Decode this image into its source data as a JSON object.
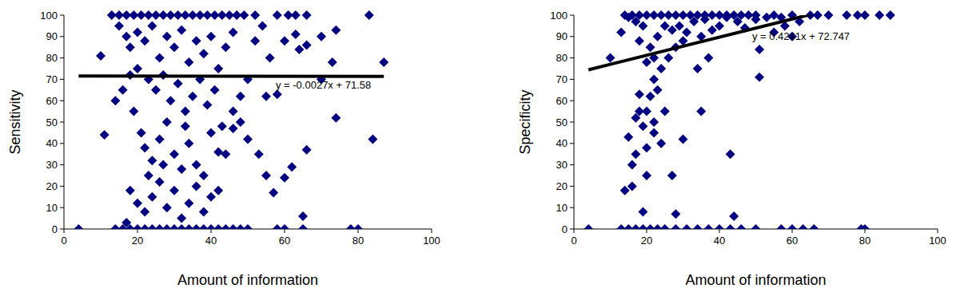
{
  "chart_data": [
    {
      "type": "scatter",
      "x_label": "Amount of information",
      "y_label": "Sensitivity",
      "color": "#000080",
      "marker": "diamond",
      "xlim": [
        0,
        100
      ],
      "ylim": [
        0,
        100
      ],
      "xticks": [
        0,
        20,
        40,
        60,
        80,
        100
      ],
      "yticks": [
        0,
        10,
        20,
        30,
        40,
        50,
        60,
        70,
        80,
        90,
        100
      ],
      "trendline": {
        "slope": -0.0027,
        "intercept": 71.58,
        "label": "y = -0.0027x + 71.58"
      },
      "x": [
        13,
        15,
        17,
        19,
        21,
        23,
        25,
        27,
        29,
        31,
        33,
        35,
        37,
        39,
        41,
        43,
        45,
        47,
        49,
        52,
        58,
        61,
        63,
        66,
        83,
        15,
        17,
        18,
        20,
        22,
        24,
        26,
        28,
        30,
        32,
        34,
        36,
        38,
        40,
        42,
        44,
        46,
        20,
        23,
        25,
        27,
        29,
        31,
        33,
        35,
        37,
        39,
        41,
        43,
        19,
        21,
        22,
        24,
        26,
        28,
        30,
        32,
        34,
        36,
        38,
        40,
        42,
        18,
        20,
        22,
        24,
        26,
        28,
        30,
        32,
        34,
        36,
        38,
        40,
        42,
        44,
        46,
        48,
        17,
        23,
        27,
        33,
        16,
        18,
        14,
        4,
        14,
        16,
        18,
        20,
        22,
        24,
        26,
        28,
        30,
        32,
        34,
        36,
        38,
        40,
        42,
        44,
        46,
        48,
        50,
        58,
        60,
        65,
        78,
        80,
        10,
        11,
        84,
        87,
        74,
        73,
        74,
        70,
        66,
        65,
        62,
        60,
        58,
        57,
        55,
        53,
        50,
        52,
        55,
        64,
        63,
        66,
        70,
        54,
        56,
        60,
        48,
        46,
        50
      ],
      "values": [
        100,
        100,
        100,
        100,
        100,
        100,
        100,
        100,
        100,
        100,
        100,
        100,
        100,
        100,
        100,
        100,
        100,
        100,
        100,
        100,
        100,
        100,
        100,
        100,
        100,
        95,
        90,
        85,
        92,
        88,
        95,
        80,
        90,
        85,
        93,
        78,
        88,
        82,
        90,
        75,
        85,
        92,
        75,
        70,
        65,
        72,
        60,
        68,
        55,
        62,
        70,
        58,
        65,
        48,
        55,
        45,
        38,
        32,
        42,
        50,
        35,
        28,
        40,
        30,
        25,
        45,
        36,
        18,
        12,
        8,
        15,
        22,
        10,
        18,
        5,
        12,
        20,
        8,
        15,
        18,
        35,
        47,
        50,
        3,
        25,
        30,
        48,
        65,
        72,
        60,
        0,
        0,
        0,
        0,
        0,
        0,
        0,
        0,
        0,
        0,
        0,
        0,
        0,
        0,
        0,
        0,
        0,
        0,
        0,
        0,
        0,
        0,
        0,
        0,
        0,
        81,
        44,
        42,
        78,
        52,
        78,
        93,
        70,
        37,
        6,
        29,
        24,
        63,
        17,
        25,
        35,
        70,
        88,
        62,
        84,
        91,
        86,
        90,
        95,
        80,
        88,
        62,
        55,
        42
      ]
    },
    {
      "type": "scatter",
      "x_label": "Amount of information",
      "y_label": "Specificity",
      "color": "#000080",
      "marker": "diamond",
      "xlim": [
        0,
        100
      ],
      "ylim": [
        0,
        100
      ],
      "xticks": [
        0,
        20,
        40,
        60,
        80,
        100
      ],
      "yticks": [
        0,
        10,
        20,
        30,
        40,
        50,
        60,
        70,
        80,
        90,
        100
      ],
      "trendline": {
        "slope": 0.4241,
        "intercept": 72.747,
        "label": "y = 0.4241x + 72.747"
      },
      "x": [
        14,
        16,
        18,
        20,
        22,
        24,
        26,
        28,
        30,
        32,
        34,
        36,
        38,
        40,
        42,
        44,
        46,
        48,
        50,
        55,
        60,
        65,
        67,
        70,
        75,
        78,
        80,
        84,
        87,
        4,
        13,
        15,
        17,
        19,
        21,
        23,
        25,
        28,
        31,
        34,
        37,
        40,
        43,
        46,
        50,
        57,
        60,
        63,
        66,
        79,
        80,
        13,
        10,
        15,
        14,
        16,
        17,
        18,
        19,
        20,
        22,
        25,
        27,
        28,
        30,
        34,
        35,
        37,
        43,
        44,
        51,
        51,
        55,
        58,
        60,
        50,
        45,
        40,
        35,
        30,
        28,
        26,
        24,
        22,
        21,
        20,
        19,
        23,
        24,
        22,
        20,
        18,
        17,
        16,
        21,
        23,
        25,
        27,
        19,
        17,
        15,
        20,
        22,
        18,
        29,
        31,
        33,
        36,
        38,
        42,
        47,
        53,
        62,
        57
      ],
      "values": [
        100,
        100,
        100,
        100,
        100,
        100,
        100,
        100,
        100,
        100,
        100,
        100,
        100,
        100,
        100,
        100,
        100,
        100,
        100,
        100,
        100,
        100,
        100,
        100,
        100,
        100,
        100,
        100,
        100,
        0,
        0,
        0,
        0,
        0,
        0,
        0,
        0,
        0,
        0,
        0,
        0,
        0,
        0,
        0,
        0,
        0,
        0,
        0,
        0,
        0,
        0,
        92,
        80,
        43,
        18,
        20,
        35,
        55,
        8,
        25,
        45,
        55,
        25,
        7,
        42,
        75,
        55,
        80,
        35,
        6,
        71,
        84,
        92,
        95,
        90,
        98,
        97,
        95,
        90,
        88,
        85,
        80,
        75,
        70,
        62,
        55,
        48,
        65,
        40,
        50,
        38,
        63,
        52,
        30,
        85,
        90,
        95,
        93,
        95,
        97,
        99,
        78,
        80,
        88,
        95,
        92,
        97,
        98,
        93,
        99,
        94,
        99,
        97,
        99
      ]
    }
  ]
}
